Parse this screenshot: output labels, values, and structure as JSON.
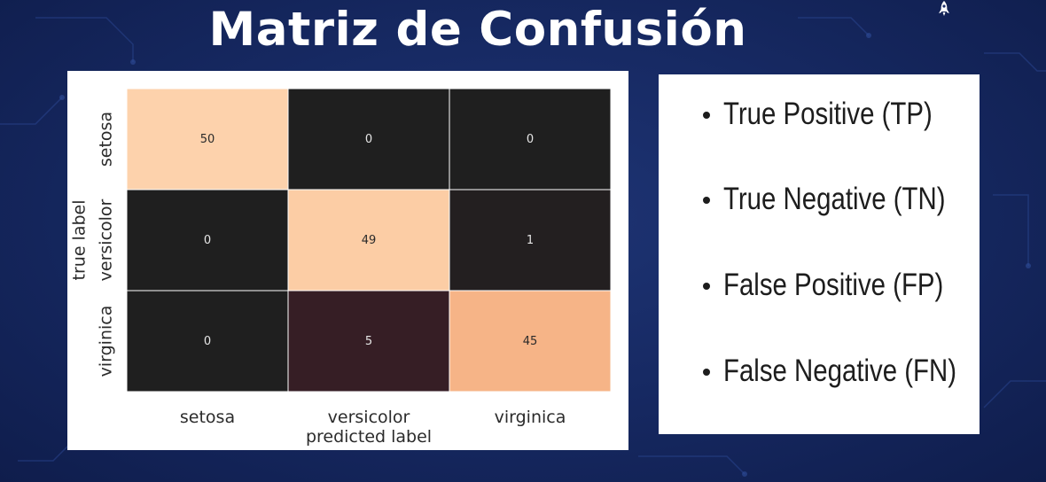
{
  "slide": {
    "title": "Matriz de Confusión",
    "logo_icon": "rocket-icon"
  },
  "chart_data": {
    "type": "heatmap",
    "title": "",
    "xlabel": "predicted label",
    "ylabel": "true label",
    "x_categories": [
      "setosa",
      "versicolor",
      "virginica"
    ],
    "y_categories": [
      "setosa",
      "versicolor",
      "virginica"
    ],
    "values": [
      [
        50,
        0,
        0
      ],
      [
        0,
        49,
        1
      ],
      [
        0,
        5,
        45
      ]
    ],
    "value_range": [
      0,
      50
    ],
    "cell_labels": [
      [
        "50",
        "0",
        "0"
      ],
      [
        "0",
        "49",
        "1"
      ],
      [
        "0",
        "5",
        "45"
      ]
    ],
    "colormap": "rocket",
    "cell_border_color": "#ffffff",
    "legend": "none",
    "grid": false
  },
  "legend_list": {
    "items": [
      "True Positive (TP)",
      "True Negative (TN)",
      "False Positive (FP)",
      "False Negative (FN)"
    ]
  }
}
